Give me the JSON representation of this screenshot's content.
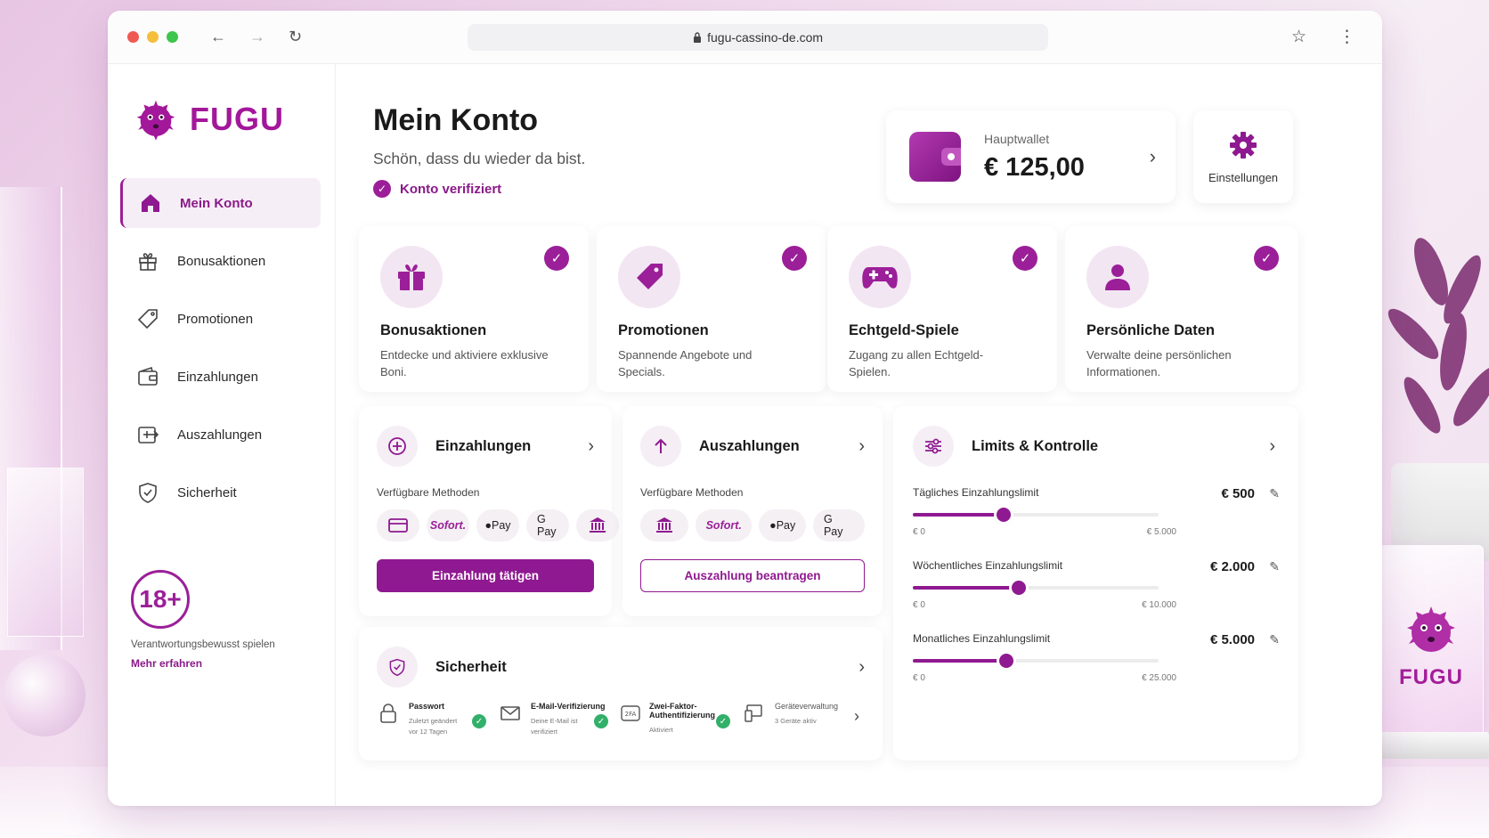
{
  "browser": {
    "url": "fugu-cassino-de.com",
    "traffic_lights": [
      "#ee5a52",
      "#f5be3b",
      "#3ec54b"
    ]
  },
  "brand": {
    "name": "FUGU",
    "accent": "#9b1f98"
  },
  "sidebar": {
    "items": [
      {
        "label": "Mein Konto",
        "icon": "home-icon",
        "active": true
      },
      {
        "label": "Bonusaktionen",
        "icon": "gift-icon"
      },
      {
        "label": "Promotionen",
        "icon": "tag-icon"
      },
      {
        "label": "Einzahlungen",
        "icon": "wallet-icon"
      },
      {
        "label": "Auszahlungen",
        "icon": "withdraw-icon"
      },
      {
        "label": "Sicherheit",
        "icon": "shield-icon"
      }
    ],
    "age_badge": "18+",
    "responsible_text": "Verantwortungsbewusst spielen",
    "more_link": "Mehr erfahren"
  },
  "header": {
    "title": "Mein Konto",
    "welcome": "Schön, dass du wieder da bist.",
    "verified": "Konto verifiziert",
    "wallet_label": "Hauptwallet",
    "wallet_amount": "€ 125,00",
    "settings_label": "Einstellungen"
  },
  "features": [
    {
      "title": "Bonusaktionen",
      "desc": "Entdecke und aktiviere exklusive Boni.",
      "icon": "gift-icon"
    },
    {
      "title": "Promotionen",
      "desc": "Spannende Angebote und Specials.",
      "icon": "tag-icon"
    },
    {
      "title": "Echtgeld-Spiele",
      "desc": "Zugang zu allen Echtgeld-Spielen.",
      "icon": "gamepad-icon"
    },
    {
      "title": "Persönliche Daten",
      "desc": "Verwalte deine persönlichen Informationen.",
      "icon": "user-icon"
    }
  ],
  "deposit": {
    "title": "Einzahlungen",
    "methods_label": "Verfügbare Methoden",
    "methods": [
      "card",
      "Sofort.",
      "Pay",
      "G Pay",
      "bank"
    ],
    "button": "Einzahlung tätigen"
  },
  "withdraw": {
    "title": "Auszahlungen",
    "methods_label": "Verfügbare Methoden",
    "methods": [
      "bank",
      "Sofort.",
      "Pay",
      "G Pay"
    ],
    "button": "Auszahlung beantragen"
  },
  "limits": {
    "title": "Limits & Kontrolle",
    "rows": [
      {
        "label": "Tägliches Einzahlungslimit",
        "value": "€ 500",
        "min": "€ 0",
        "max": "€ 5.000",
        "level": 0.37
      },
      {
        "label": "Wöchentliches Einzahlungslimit",
        "value": "€ 2.000",
        "min": "€ 0",
        "max": "€ 10.000",
        "level": 0.43
      },
      {
        "label": "Monatliches Einzahlungslimit",
        "value": "€ 5.000",
        "min": "€ 0",
        "max": "€ 25.000",
        "level": 0.38
      }
    ]
  },
  "security": {
    "title": "Sicherheit",
    "items": [
      {
        "name": "Passwort",
        "sub": "Zuletzt geändert vor 12 Tagen",
        "ok": true
      },
      {
        "name": "E-Mail-Verifizierung",
        "sub": "Deine E-Mail ist verifiziert",
        "ok": true
      },
      {
        "name": "Zwei-Faktor-Authentifizierung",
        "sub": "Aktiviert",
        "ok": true
      },
      {
        "name": "Geräteverwaltung",
        "sub": "3 Geräte aktiv",
        "ok": false
      }
    ]
  },
  "decor": {
    "acrylic_brand": "FUGU"
  }
}
